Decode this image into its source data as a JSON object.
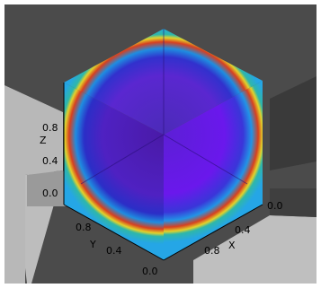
{
  "axes": {
    "z": {
      "label": "Z",
      "ticks": [
        "0.8",
        "0.4",
        "0.0"
      ]
    },
    "y": {
      "label": "Y",
      "ticks": [
        "0.8",
        "0.4",
        "0.0"
      ]
    },
    "x": {
      "label": "X",
      "ticks": [
        "0.0",
        "0.4",
        "0.8"
      ]
    }
  },
  "colors": {
    "background_dark": "#4a4a4a",
    "background_light": "#c7c7c7",
    "face_cyan": "#25a6e6",
    "octant_violet": "#6a16e6",
    "ring_red": "#d74020",
    "ring_yellow": "#e3d22a"
  }
}
